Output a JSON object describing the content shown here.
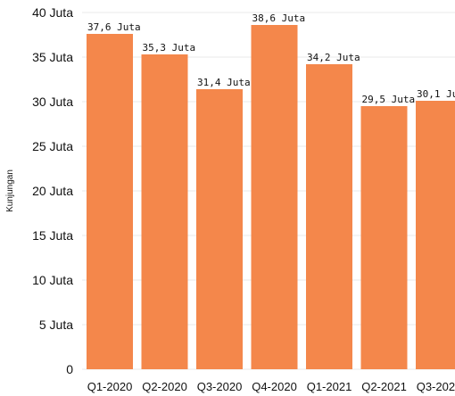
{
  "chart_data": {
    "type": "bar",
    "categories": [
      "Q1-2020",
      "Q2-2020",
      "Q3-2020",
      "Q4-2020",
      "Q1-2021",
      "Q2-2021",
      "Q3-2021"
    ],
    "values": [
      37.6,
      35.3,
      31.4,
      38.6,
      34.2,
      29.5,
      30.1
    ],
    "data_labels": [
      "37,6 Juta",
      "35,3 Juta",
      "31,4 Juta",
      "38,6 Juta",
      "34,2 Juta",
      "29,5 Juta",
      "30,1 Juta"
    ],
    "title": "",
    "xlabel": "",
    "ylabel": "Kunjungan",
    "ylim": [
      0,
      40
    ],
    "yticks": [
      0,
      5,
      10,
      15,
      20,
      25,
      30,
      35,
      40
    ],
    "ytick_labels": [
      "0",
      "5 Juta",
      "10 Juta",
      "15 Juta",
      "20 Juta",
      "25 Juta",
      "30 Juta",
      "35 Juta",
      "40 Juta"
    ],
    "bar_color": "#f4874b",
    "grid": true,
    "legend": "none"
  }
}
